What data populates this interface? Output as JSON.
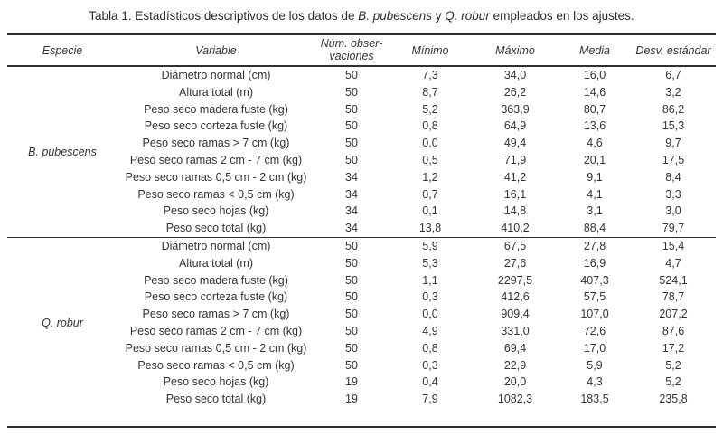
{
  "title": {
    "prefix": "Tabla 1. Estadísticos descriptivos de los datos de ",
    "species_1": "B. pubescens",
    "mid": " y ",
    "species_2": "Q. robur",
    "suffix": " empleados en los ajustes."
  },
  "table": {
    "headers": {
      "especie": "Especie",
      "variable": "Variable",
      "num_observaciones": "Núm. obser-\nvaciones",
      "minimo": "Mínimo",
      "maximo": "Máximo",
      "media": "Media",
      "desv_estandar": "Desv. estándar"
    },
    "decimal_separator": ",",
    "sections": [
      {
        "species": "B. pubescens",
        "rows": [
          [
            "Diámetro normal (cm)",
            "50",
            "7,3",
            "34,0",
            "16,0",
            "6,7"
          ],
          [
            "Altura total (m)",
            "50",
            "8,7",
            "26,2",
            "14,6",
            "3,2"
          ],
          [
            "Peso seco madera fuste (kg)",
            "50",
            "5,2",
            "363,9",
            "80,7",
            "86,2"
          ],
          [
            "Peso seco corteza fuste (kg)",
            "50",
            "0,8",
            "64,9",
            "13,6",
            "15,3"
          ],
          [
            "Peso seco ramas > 7 cm (kg)",
            "50",
            "0,0",
            "49,4",
            "4,6",
            "9,7"
          ],
          [
            "Peso seco ramas 2 cm - 7 cm (kg)",
            "50",
            "0,5",
            "71,9",
            "20,1",
            "17,5"
          ],
          [
            "Peso seco ramas 0,5 cm - 2 cm (kg)",
            "34",
            "1,2",
            "41,2",
            "9,1",
            "8,4"
          ],
          [
            "Peso seco ramas < 0,5 cm (kg)",
            "34",
            "0,7",
            "16,1",
            "4,1",
            "3,3"
          ],
          [
            "Peso seco hojas (kg)",
            "34",
            "0,1",
            "14,8",
            "3,1",
            "3,0"
          ],
          [
            "Peso seco total (kg)",
            "34",
            "13,8",
            "410,2",
            "88,4",
            "79,7"
          ]
        ]
      },
      {
        "species": "Q. robur",
        "rows": [
          [
            "Diámetro normal (cm)",
            "50",
            "5,9",
            "67,5",
            "27,8",
            "15,4"
          ],
          [
            "Altura total (m)",
            "50",
            "5,3",
            "27,6",
            "16,9",
            "4,7"
          ],
          [
            "Peso seco madera fuste (kg)",
            "50",
            "1,1",
            "2297,5",
            "407,3",
            "524,1"
          ],
          [
            "Peso seco corteza fuste (kg)",
            "50",
            "0,3",
            "412,6",
            "57,5",
            "78,7"
          ],
          [
            "Peso seco ramas > 7 cm (kg)",
            "50",
            "0,0",
            "909,4",
            "107,0",
            "207,2"
          ],
          [
            "Peso seco ramas 2 cm - 7 cm (kg)",
            "50",
            "4,9",
            "331,0",
            "72,6",
            "87,6"
          ],
          [
            "Peso seco ramas 0,5 cm - 2 cm (kg)",
            "50",
            "0,8",
            "69,4",
            "17,0",
            "17,2"
          ],
          [
            "Peso seco ramas < 0,5 cm (kg)",
            "50",
            "0,3",
            "22,9",
            "5,9",
            "5,2"
          ],
          [
            "Peso seco hojas (kg)",
            "19",
            "0,4",
            "20,0",
            "4,3",
            "5,2"
          ],
          [
            "Peso seco total (kg)",
            "19",
            "7,9",
            "1082,3",
            "183,5",
            "235,8"
          ]
        ]
      }
    ]
  }
}
